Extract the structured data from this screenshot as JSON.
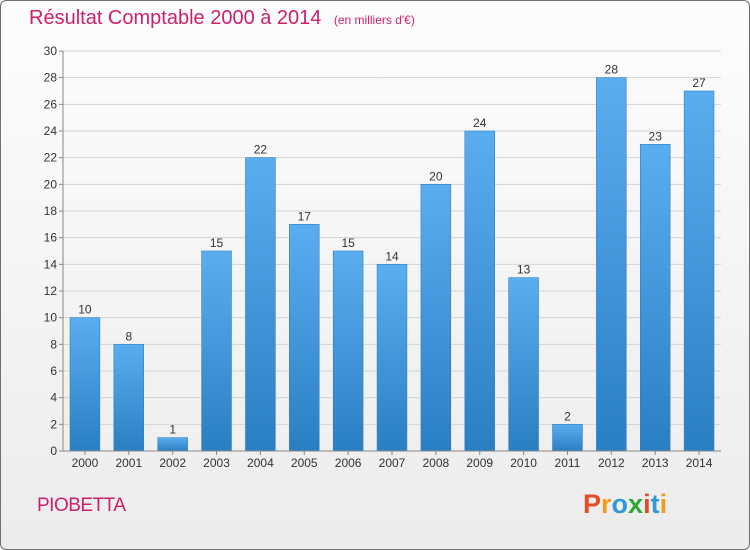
{
  "header": {
    "title": "Résultat Comptable 2000 à 2014",
    "unit": "(en milliers d'€)"
  },
  "footer": {
    "commune": "PIOBETTA",
    "logo_text": "Proxiti"
  },
  "colors": {
    "title": "#cc1f6e",
    "bar_top": "#5aaef0",
    "bar_bottom": "#2a7ec2",
    "logo_letters": [
      "#e24d2a",
      "#f29c1d",
      "#2f9ad6",
      "#33a532",
      "#e24d2a",
      "#2f9ad6",
      "#f29c1d"
    ]
  },
  "chart_data": {
    "type": "bar",
    "title": "Résultat Comptable 2000 à 2014",
    "subtitle": "(en milliers d'€)",
    "categories": [
      "2000",
      "2001",
      "2002",
      "2003",
      "2004",
      "2005",
      "2006",
      "2007",
      "2008",
      "2009",
      "2010",
      "2011",
      "2012",
      "2013",
      "2014"
    ],
    "values": [
      10,
      8,
      1,
      15,
      22,
      17,
      15,
      14,
      20,
      24,
      13,
      2,
      28,
      23,
      27
    ],
    "ylim": [
      0,
      30
    ],
    "yticks": [
      0,
      2,
      4,
      6,
      8,
      10,
      12,
      14,
      16,
      18,
      20,
      22,
      24,
      26,
      28,
      30
    ],
    "grid": true,
    "data_labels": true
  }
}
